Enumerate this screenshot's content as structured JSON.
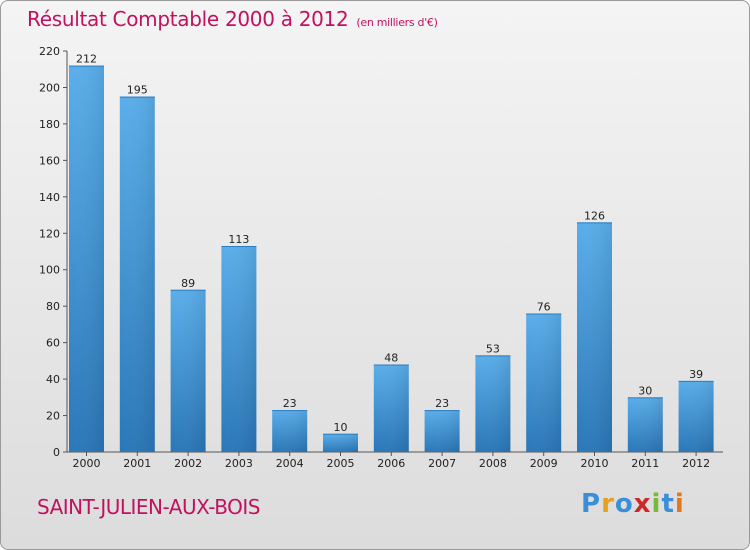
{
  "page": {
    "title": "Résultat Comptable 2000 à 2012",
    "unit": "(en milliers d'€)",
    "commune": "SAINT-JULIEN-AUX-BOIS",
    "logo": {
      "letters": [
        "P",
        "r",
        "o",
        "x",
        "i",
        "t",
        "i"
      ],
      "colors": [
        "#3b8ed8",
        "#e8a020",
        "#3b8ed8",
        "#cc2a2a",
        "#78b83a",
        "#3b8ed8",
        "#e07820"
      ]
    }
  },
  "chart_data": {
    "type": "bar",
    "title": "Résultat Comptable 2000 à 2012",
    "ylabel": "(en milliers d'€)",
    "xlabel": "",
    "categories": [
      "2000",
      "2001",
      "2002",
      "2003",
      "2004",
      "2005",
      "2006",
      "2007",
      "2008",
      "2009",
      "2010",
      "2011",
      "2012"
    ],
    "values": [
      212,
      195,
      89,
      113,
      23,
      10,
      48,
      23,
      53,
      76,
      126,
      30,
      39
    ],
    "ylim": [
      0,
      220
    ],
    "yticks": [
      0,
      20,
      40,
      60,
      80,
      100,
      120,
      140,
      160,
      180,
      200,
      220
    ],
    "grid": false,
    "bar_color": "#3f95d8",
    "bar_color_dark": "#2a77b8"
  }
}
